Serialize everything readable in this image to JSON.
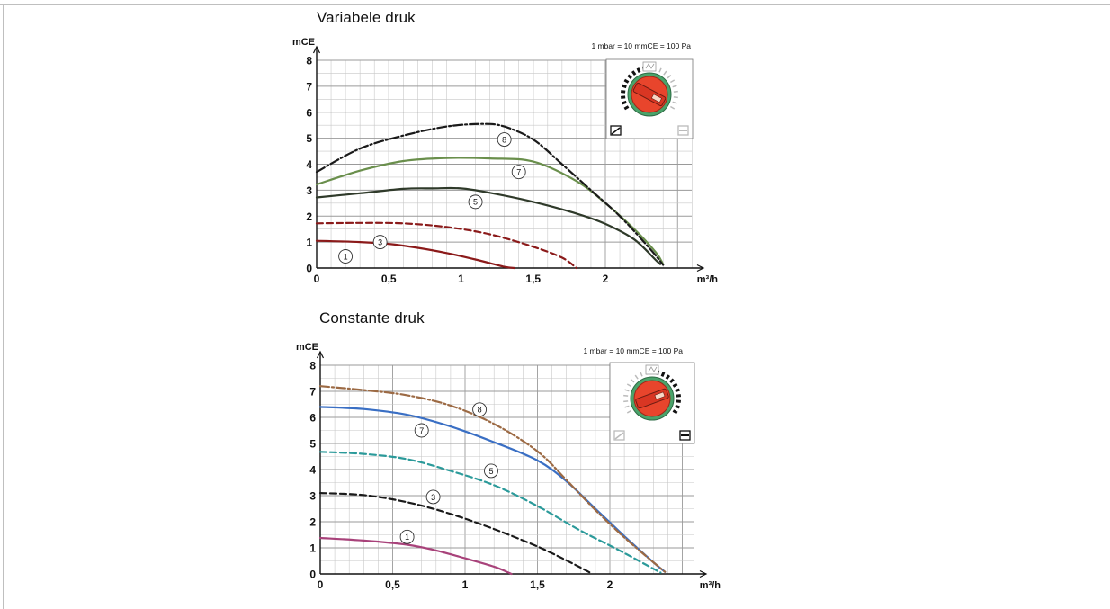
{
  "chart_data": [
    {
      "type": "line",
      "title": "Variabele druk",
      "ylabel": "mCE",
      "xlabel": "m³/h",
      "note": "1 mbar = 10 mmCE = 100 Pa",
      "xlim": [
        0,
        2.6
      ],
      "ylim": [
        0,
        8
      ],
      "x_ticks": [
        {
          "v": 0,
          "t": "0"
        },
        {
          "v": 0.5,
          "t": "0,5"
        },
        {
          "v": 1,
          "t": "1"
        },
        {
          "v": 1.5,
          "t": "1,5"
        },
        {
          "v": 2,
          "t": "2"
        }
      ],
      "y_ticks": [
        {
          "v": 0,
          "t": "0"
        },
        {
          "v": 1,
          "t": "1"
        },
        {
          "v": 2,
          "t": "2"
        },
        {
          "v": 3,
          "t": "3"
        },
        {
          "v": 4,
          "t": "4"
        },
        {
          "v": 5,
          "t": "5"
        },
        {
          "v": 6,
          "t": "6"
        },
        {
          "v": 7,
          "t": "7"
        },
        {
          "v": 8,
          "t": "8"
        }
      ],
      "grid": true,
      "series": [
        {
          "name": "1",
          "color": "#8b1a1a",
          "dash": "solid",
          "points": [
            [
              0,
              1.05
            ],
            [
              0.3,
              1.0
            ],
            [
              0.5,
              0.93
            ],
            [
              0.7,
              0.78
            ],
            [
              0.9,
              0.58
            ],
            [
              1.1,
              0.33
            ],
            [
              1.3,
              0.05
            ],
            [
              1.37,
              0
            ]
          ],
          "label_at": [
            0.2,
            0.45
          ]
        },
        {
          "name": "3",
          "color": "#8b1a1a",
          "dash": "dashed",
          "points": [
            [
              0,
              1.72
            ],
            [
              0.3,
              1.74
            ],
            [
              0.6,
              1.72
            ],
            [
              0.9,
              1.58
            ],
            [
              1.2,
              1.3
            ],
            [
              1.5,
              0.82
            ],
            [
              1.7,
              0.4
            ],
            [
              1.8,
              0
            ]
          ],
          "label_at": [
            0.44,
            1.0
          ]
        },
        {
          "name": "5",
          "color": "#2f3a2a",
          "dash": "solid",
          "points": [
            [
              0,
              2.72
            ],
            [
              0.3,
              2.88
            ],
            [
              0.6,
              3.05
            ],
            [
              0.8,
              3.07
            ],
            [
              1.0,
              3.07
            ],
            [
              1.2,
              2.9
            ],
            [
              1.5,
              2.55
            ],
            [
              1.8,
              2.1
            ],
            [
              2.0,
              1.7
            ],
            [
              2.2,
              1.1
            ],
            [
              2.35,
              0.3
            ],
            [
              2.38,
              0.15
            ]
          ],
          "label_at": [
            1.1,
            2.55
          ]
        },
        {
          "name": "7",
          "color": "#6a8f4c",
          "dash": "solid",
          "points": [
            [
              0,
              3.22
            ],
            [
              0.3,
              3.75
            ],
            [
              0.6,
              4.12
            ],
            [
              0.9,
              4.24
            ],
            [
              1.2,
              4.22
            ],
            [
              1.5,
              4.1
            ],
            [
              1.8,
              3.35
            ],
            [
              2.0,
              2.5
            ],
            [
              2.2,
              1.5
            ],
            [
              2.35,
              0.6
            ],
            [
              2.4,
              0.15
            ]
          ],
          "label_at": [
            1.4,
            3.7
          ]
        },
        {
          "name": "8",
          "color": "#1a1a1a",
          "dash": "dashdot",
          "points": [
            [
              0,
              3.7
            ],
            [
              0.3,
              4.6
            ],
            [
              0.6,
              5.1
            ],
            [
              0.9,
              5.45
            ],
            [
              1.15,
              5.55
            ],
            [
              1.3,
              5.45
            ],
            [
              1.5,
              4.95
            ],
            [
              1.7,
              4.0
            ],
            [
              1.9,
              3.0
            ],
            [
              2.1,
              2.0
            ],
            [
              2.3,
              0.8
            ],
            [
              2.4,
              0.12
            ]
          ],
          "label_at": [
            1.3,
            4.95
          ]
        }
      ]
    },
    {
      "type": "line",
      "title": "Constante druk",
      "ylabel": "mCE",
      "xlabel": "m³/h",
      "note": "1 mbar = 10 mmCE = 100 Pa",
      "xlim": [
        0,
        2.6
      ],
      "ylim": [
        0,
        8
      ],
      "x_ticks": [
        {
          "v": 0,
          "t": "0"
        },
        {
          "v": 0.5,
          "t": "0,5"
        },
        {
          "v": 1,
          "t": "1"
        },
        {
          "v": 1.5,
          "t": "1,5"
        },
        {
          "v": 2,
          "t": "2"
        }
      ],
      "y_ticks": [
        {
          "v": 0,
          "t": "0"
        },
        {
          "v": 1,
          "t": "1"
        },
        {
          "v": 2,
          "t": "2"
        },
        {
          "v": 3,
          "t": "3"
        },
        {
          "v": 4,
          "t": "4"
        },
        {
          "v": 5,
          "t": "5"
        },
        {
          "v": 6,
          "t": "6"
        },
        {
          "v": 7,
          "t": "7"
        },
        {
          "v": 8,
          "t": "8"
        }
      ],
      "grid": true,
      "series": [
        {
          "name": "1",
          "color": "#a8427a",
          "dash": "solid",
          "points": [
            [
              0,
              1.38
            ],
            [
              0.3,
              1.28
            ],
            [
              0.6,
              1.12
            ],
            [
              0.8,
              0.9
            ],
            [
              1.0,
              0.6
            ],
            [
              1.2,
              0.28
            ],
            [
              1.3,
              0.05
            ],
            [
              1.32,
              0
            ]
          ],
          "label_at": [
            0.6,
            1.42
          ]
        },
        {
          "name": "3",
          "color": "#1a1a1a",
          "dash": "dashed",
          "points": [
            [
              0,
              3.1
            ],
            [
              0.3,
              3.02
            ],
            [
              0.6,
              2.75
            ],
            [
              0.9,
              2.3
            ],
            [
              1.2,
              1.72
            ],
            [
              1.5,
              1.05
            ],
            [
              1.75,
              0.38
            ],
            [
              1.88,
              0
            ]
          ],
          "label_at": [
            0.78,
            2.95
          ]
        },
        {
          "name": "5",
          "color": "#2b9a9a",
          "dash": "dashed",
          "points": [
            [
              0,
              4.68
            ],
            [
              0.3,
              4.6
            ],
            [
              0.6,
              4.4
            ],
            [
              0.9,
              3.95
            ],
            [
              1.2,
              3.4
            ],
            [
              1.5,
              2.6
            ],
            [
              1.8,
              1.65
            ],
            [
              2.05,
              0.95
            ],
            [
              2.25,
              0.35
            ],
            [
              2.35,
              0.05
            ]
          ],
          "label_at": [
            1.18,
            3.95
          ]
        },
        {
          "name": "7",
          "color": "#3a6fc4",
          "dash": "solid",
          "points": [
            [
              0,
              6.4
            ],
            [
              0.3,
              6.32
            ],
            [
              0.6,
              6.1
            ],
            [
              0.9,
              5.65
            ],
            [
              1.2,
              5.05
            ],
            [
              1.5,
              4.35
            ],
            [
              1.7,
              3.55
            ],
            [
              1.9,
              2.5
            ],
            [
              2.1,
              1.45
            ],
            [
              2.3,
              0.45
            ],
            [
              2.38,
              0.08
            ]
          ],
          "label_at": [
            0.7,
            5.5
          ]
        },
        {
          "name": "8",
          "color": "#9c6a44",
          "dash": "dashdot",
          "points": [
            [
              0,
              7.2
            ],
            [
              0.3,
              7.05
            ],
            [
              0.6,
              6.85
            ],
            [
              0.9,
              6.45
            ],
            [
              1.2,
              5.75
            ],
            [
              1.5,
              4.7
            ],
            [
              1.7,
              3.6
            ],
            [
              1.9,
              2.45
            ],
            [
              2.1,
              1.4
            ],
            [
              2.3,
              0.45
            ],
            [
              2.38,
              0.08
            ]
          ],
          "label_at": [
            1.1,
            6.3
          ]
        }
      ]
    }
  ]
}
